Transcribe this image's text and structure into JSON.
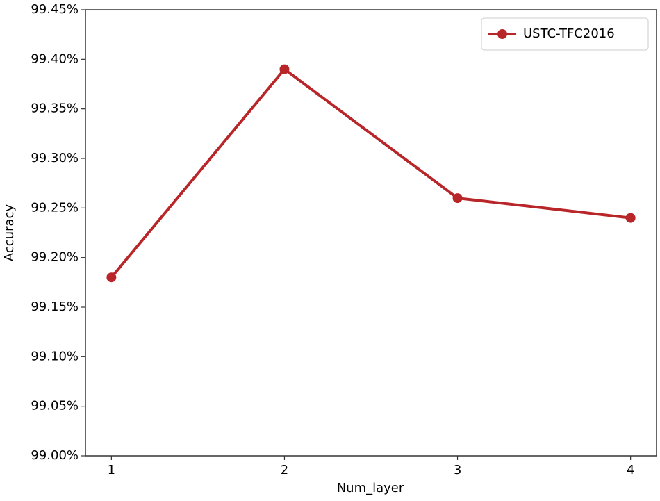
{
  "chart_data": {
    "type": "line",
    "x_label": "Num_layer",
    "y_label": "Accuracy",
    "x": [
      1,
      2,
      3,
      4
    ],
    "series": [
      {
        "name": "USTC-TFC2016",
        "color": "#b8262a",
        "values": [
          99.18,
          99.39,
          99.26,
          99.24
        ]
      }
    ],
    "xlim": [
      0.85,
      4.15
    ],
    "xticks": [
      1,
      2,
      3,
      4
    ],
    "ylim": [
      99.0,
      99.45
    ],
    "yticks": [
      {
        "value": 99.0,
        "label": "99.00%"
      },
      {
        "value": 99.05,
        "label": "99.05%"
      },
      {
        "value": 99.1,
        "label": "99.10%"
      },
      {
        "value": 99.15,
        "label": "99.15%"
      },
      {
        "value": 99.2,
        "label": "99.20%"
      },
      {
        "value": 99.25,
        "label": "99.25%"
      },
      {
        "value": 99.3,
        "label": "99.30%"
      },
      {
        "value": 99.35,
        "label": "99.35%"
      },
      {
        "value": 99.4,
        "label": "99.40%"
      },
      {
        "value": 99.45,
        "label": "99.45%"
      }
    ],
    "grid": false,
    "legend": "upper right"
  }
}
